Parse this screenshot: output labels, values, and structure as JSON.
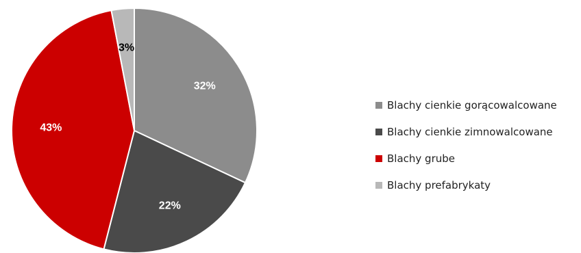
{
  "chart_data": {
    "type": "pie",
    "title": "",
    "start_angle_deg": 0,
    "direction": "clockwise",
    "legend_position": "right",
    "slices": [
      {
        "label": "Blachy cienkie gorącowalcowane",
        "value": 32,
        "display": "32%",
        "color": "#8c8c8c",
        "label_color": "#ffffff"
      },
      {
        "label": "Blachy cienkie zimnowalcowane",
        "value": 22,
        "display": "22%",
        "color": "#4a4a4a",
        "label_color": "#ffffff"
      },
      {
        "label": "Blachy grube",
        "value": 43,
        "display": "43%",
        "color": "#cc0000",
        "label_color": "#ffffff"
      },
      {
        "label": "Blachy prefabrykaty",
        "value": 3,
        "display": "3%",
        "color": "#b8b8b8",
        "label_color": "#000000"
      }
    ]
  }
}
